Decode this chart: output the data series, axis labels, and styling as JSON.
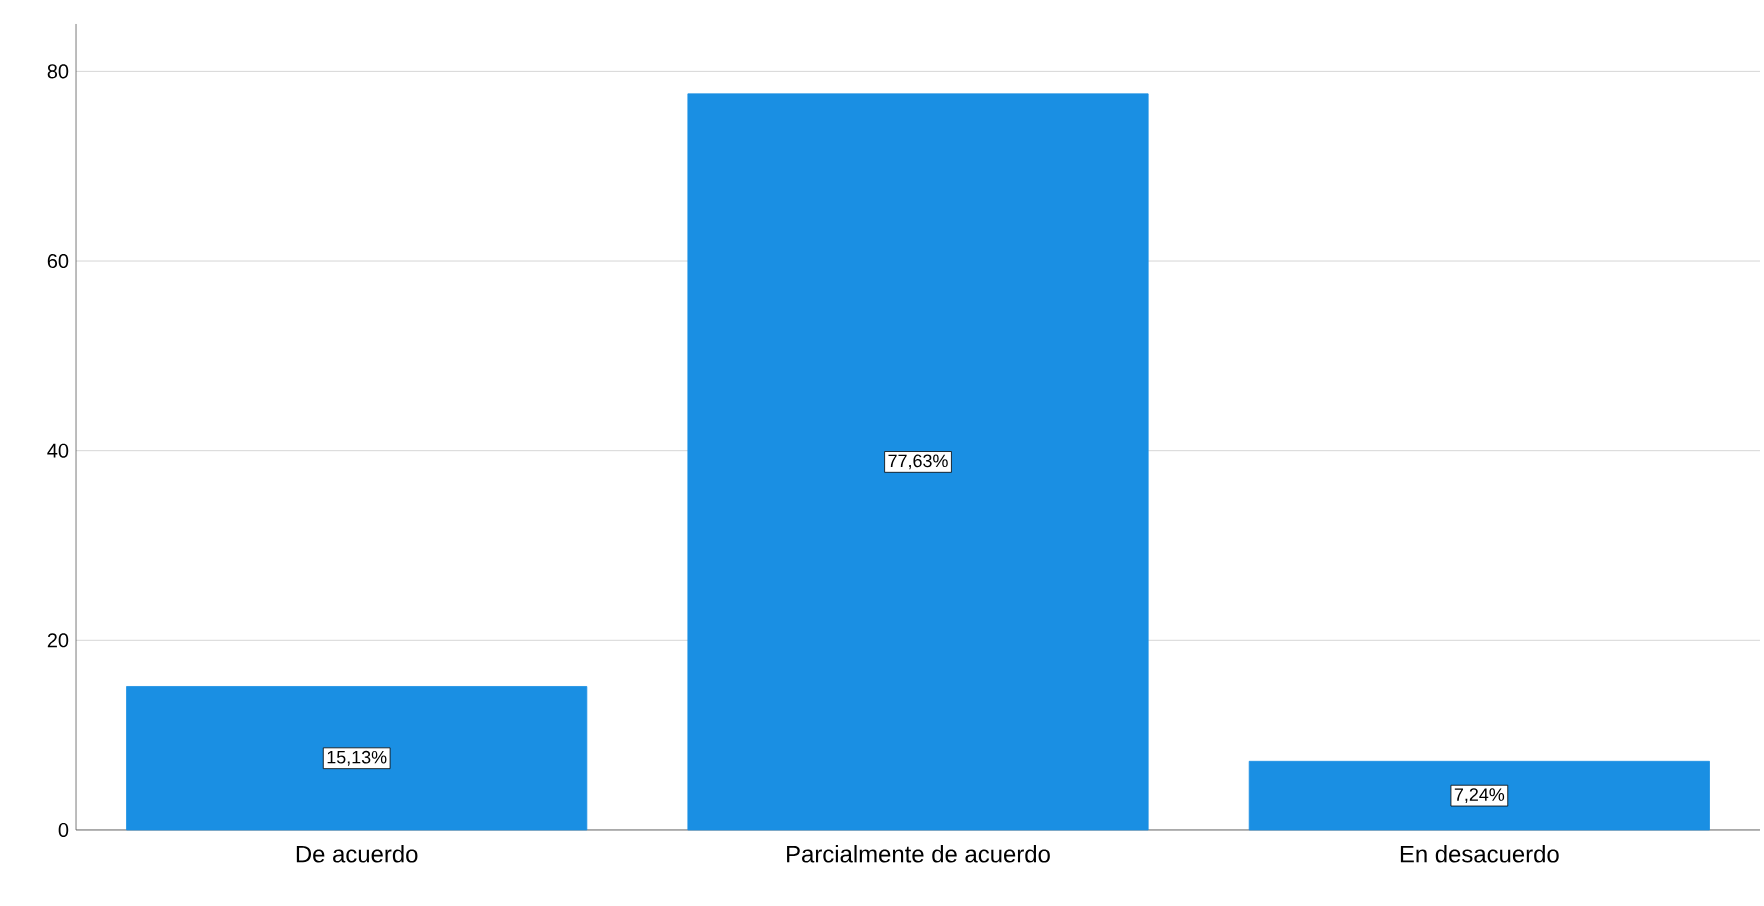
{
  "chart_data": {
    "type": "bar",
    "categories": [
      "De acuerdo",
      "Parcialmente de acuerdo",
      "En desacuerdo"
    ],
    "values": [
      15.13,
      77.63,
      7.24
    ],
    "value_labels": [
      "15,13%",
      "77,63%",
      "7,24%"
    ],
    "color": "#1a8fe3",
    "ylim": [
      0,
      85
    ],
    "yticks": [
      0,
      20,
      40,
      60,
      80
    ],
    "grid": "y"
  }
}
